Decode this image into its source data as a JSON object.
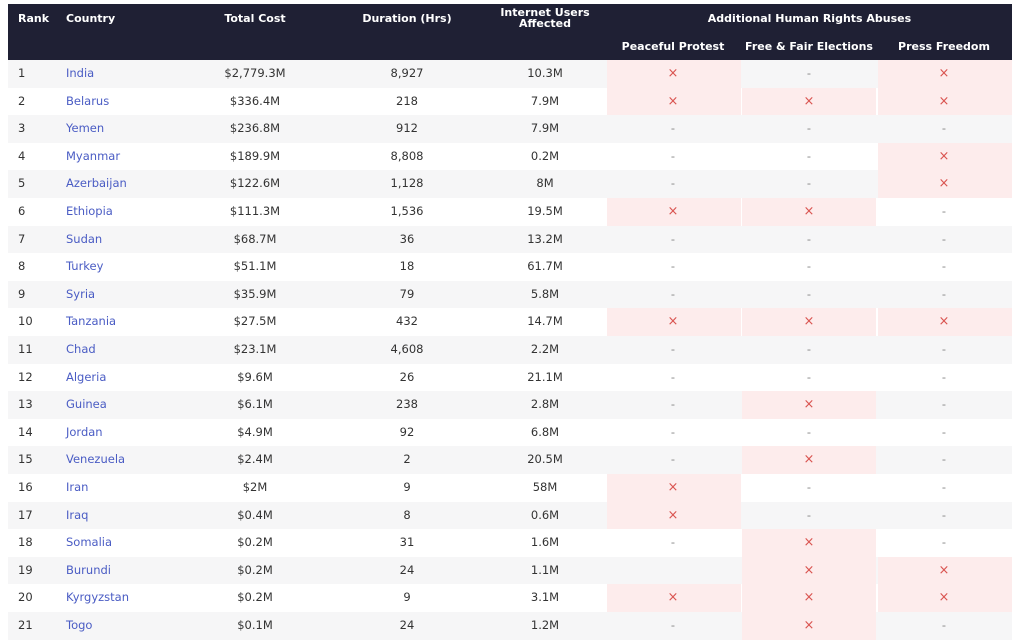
{
  "table": {
    "header": {
      "columns": [
        "Rank",
        "Country",
        "Total Cost",
        "Duration (Hrs)",
        "Internet Users Affected"
      ],
      "group": "Additional Human Rights Abuses",
      "subcolumns": [
        "Peaceful Protest",
        "Free & Fair Elections",
        "Press Freedom"
      ]
    },
    "rows": [
      [
        "1",
        "India",
        "$2,779.3M",
        "8,927",
        "10.3M",
        "×",
        "-",
        "×"
      ],
      [
        "2",
        "Belarus",
        "$336.4M",
        "218",
        "7.9M",
        "×",
        "×",
        "×"
      ],
      [
        "3",
        "Yemen",
        "$236.8M",
        "912",
        "7.9M",
        "-",
        "-",
        "-"
      ],
      [
        "4",
        "Myanmar",
        "$189.9M",
        "8,808",
        "0.2M",
        "-",
        "-",
        "×"
      ],
      [
        "5",
        "Azerbaijan",
        "$122.6M",
        "1,128",
        "8M",
        "-",
        "-",
        "×"
      ],
      [
        "6",
        "Ethiopia",
        "$111.3M",
        "1,536",
        "19.5M",
        "×",
        "×",
        "-"
      ],
      [
        "7",
        "Sudan",
        "$68.7M",
        "36",
        "13.2M",
        "-",
        "-",
        "-"
      ],
      [
        "8",
        "Turkey",
        "$51.1M",
        "18",
        "61.7M",
        "-",
        "-",
        "-"
      ],
      [
        "9",
        "Syria",
        "$35.9M",
        "79",
        "5.8M",
        "-",
        "-",
        "-"
      ],
      [
        "10",
        "Tanzania",
        "$27.5M",
        "432",
        "14.7M",
        "×",
        "×",
        "×"
      ],
      [
        "11",
        "Chad",
        "$23.1M",
        "4,608",
        "2.2M",
        "-",
        "-",
        "-"
      ],
      [
        "12",
        "Algeria",
        "$9.6M",
        "26",
        "21.1M",
        "-",
        "-",
        "-"
      ],
      [
        "13",
        "Guinea",
        "$6.1M",
        "238",
        "2.8M",
        "-",
        "×",
        "-"
      ],
      [
        "14",
        "Jordan",
        "$4.9M",
        "92",
        "6.8M",
        "-",
        "-",
        "-"
      ],
      [
        "15",
        "Venezuela",
        "$2.4M",
        "2",
        "20.5M",
        "-",
        "×",
        "-"
      ],
      [
        "16",
        "Iran",
        "$2M",
        "9",
        "58M",
        "×",
        "-",
        "-"
      ],
      [
        "17",
        "Iraq",
        "$0.4M",
        "8",
        "0.6M",
        "×",
        "-",
        "-"
      ],
      [
        "18",
        "Somalia",
        "$0.2M",
        "31",
        "1.6M",
        "-",
        "×",
        "-"
      ],
      [
        "19",
        "Burundi",
        "$0.2M",
        "24",
        "1.1M",
        null,
        "×",
        "×"
      ],
      [
        "20",
        "Kyrgyzstan",
        "$0.2M",
        "9",
        "3.1M",
        "×",
        "×",
        "×"
      ],
      [
        "21",
        "Togo",
        "$0.1M",
        "24",
        "1.2M",
        "-",
        "×",
        "-"
      ]
    ]
  }
}
